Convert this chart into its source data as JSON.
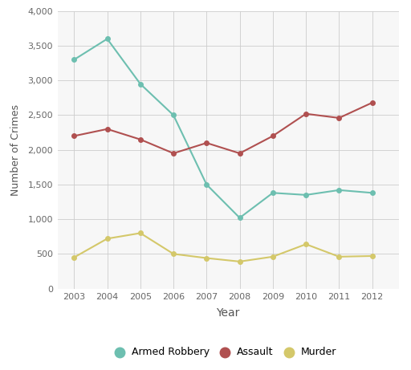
{
  "years": [
    2003,
    2004,
    2005,
    2006,
    2007,
    2008,
    2009,
    2010,
    2011,
    2012
  ],
  "armed_robbery": [
    3300,
    3600,
    2950,
    2500,
    1500,
    1020,
    1380,
    1350,
    1420,
    1380
  ],
  "assault": [
    2200,
    2300,
    2150,
    1950,
    2100,
    1950,
    2200,
    2520,
    2460,
    2680
  ],
  "murder": [
    450,
    720,
    800,
    500,
    440,
    390,
    460,
    640,
    460,
    470
  ],
  "armed_robbery_color": "#6dbfb0",
  "assault_color": "#b05050",
  "murder_color": "#d4c86a",
  "xlabel": "Year",
  "ylabel": "Number of Crimes",
  "ylim": [
    0,
    4000
  ],
  "yticks": [
    0,
    500,
    1000,
    1500,
    2000,
    2500,
    3000,
    3500,
    4000
  ],
  "background_color": "#f7f7f7",
  "grid_color": "#cccccc",
  "legend_labels": [
    "Armed Robbery",
    "Assault",
    "Murder"
  ],
  "marker": "o",
  "markersize": 4,
  "linewidth": 1.5
}
